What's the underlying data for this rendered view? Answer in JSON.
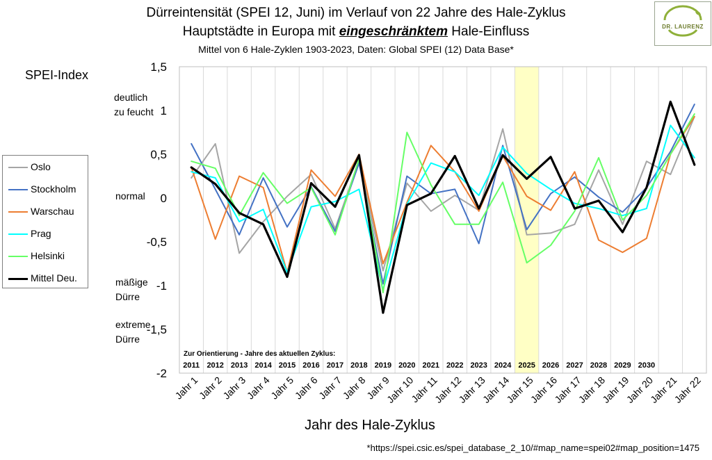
{
  "header": {
    "title_line1": "Dürreintensität (SPEI 12, Juni) im Verlauf von 22 Jahre des Hale-Zyklus",
    "title_line2_pre": "Hauptstädte in Europa mit ",
    "title_line2_em": "eingeschränktem",
    "title_line2_post": " Hale-Einfluss",
    "subtitle": "Mittel von 6 Hale-Zyklen 1903-2023, Daten: Global SPEI (12) Data Base*"
  },
  "logo": {
    "text": "DR. LAURENZ",
    "icon": "leaf-arc-logo-icon"
  },
  "y_title": "SPEI-Index",
  "categories_text": {
    "feucht_1": "deutlich",
    "feucht_2": "zu feucht",
    "normal": "normal",
    "maessig_1": "mäßige",
    "maessig_2": "Dürre",
    "extrem_1": "extreme",
    "extrem_2": "Dürre"
  },
  "x_title": "Jahr des Hale-Zyklus",
  "source_note": "*https://spei.csic.es/spei_database_2_10/#map_name=spei02#map_position=1475",
  "chart_data": {
    "type": "line",
    "x": [
      "Jahr 1",
      "Jahr 2",
      "Jahr 3",
      "Jahr 4",
      "Jahr 5",
      "Jahr 6",
      "Jahr 7",
      "Jahr 8",
      "Jahr 9",
      "Jahr 10",
      "Jahr 11",
      "Jahr 12",
      "Jahr 13",
      "Jahr 14",
      "Jahr 15",
      "Jahr 16",
      "Jahr 17",
      "Jahr 18",
      "Jahr 19",
      "Jahr 20",
      "Jahr 21",
      "Jahr 22"
    ],
    "ylim": [
      -2,
      1.5
    ],
    "y_ticks": [
      "1,5",
      "1",
      "0,5",
      "0",
      "-0,5",
      "-1",
      "-1,5",
      "-2"
    ],
    "y_tick_values": [
      1.5,
      1,
      0.5,
      0,
      -0.5,
      -1,
      -1.5,
      -2
    ],
    "grid": "vertical",
    "legend_position": "left",
    "highlight": {
      "category": "Jahr 15",
      "color": "#ffffc5"
    },
    "orientation_text": "Zur Orientierung - Jahre des aktuellen Zyklus:",
    "current_years": [
      "2011",
      "2012",
      "2013",
      "2014",
      "2015",
      "2016",
      "2017",
      "2018",
      "2019",
      "2020",
      "2021",
      "2022",
      "2023",
      "2024",
      "2025",
      "2026",
      "2027",
      "2028",
      "2029",
      "2030"
    ],
    "series": [
      {
        "name": "Oslo",
        "color": "#a5a5a5",
        "width": 2,
        "values": [
          0.23,
          0.62,
          -0.63,
          -0.27,
          0.02,
          0.27,
          -0.35,
          0.43,
          -0.83,
          0.17,
          -0.15,
          0.03,
          -0.14,
          0.79,
          -0.42,
          -0.4,
          -0.3,
          0.32,
          -0.3,
          0.42,
          0.27,
          0.93
        ]
      },
      {
        "name": "Stockholm",
        "color": "#4472c4",
        "width": 2,
        "values": [
          0.62,
          0.1,
          -0.42,
          0.23,
          -0.33,
          0.13,
          -0.38,
          0.4,
          -0.98,
          0.25,
          0.05,
          0.1,
          -0.52,
          0.6,
          -0.36,
          0.05,
          0.24,
          0.01,
          -0.16,
          0.12,
          0.53,
          1.07
        ]
      },
      {
        "name": "Warschau",
        "color": "#ed7d31",
        "width": 2,
        "values": [
          0.35,
          -0.47,
          0.25,
          0.12,
          -0.85,
          0.32,
          0.02,
          0.5,
          -0.75,
          -0.05,
          0.6,
          0.3,
          -0.15,
          0.48,
          0.02,
          -0.14,
          0.3,
          -0.48,
          -0.62,
          -0.46,
          0.5,
          0.93
        ]
      },
      {
        "name": "Prag",
        "color": "#00ffff",
        "width": 2,
        "values": [
          0.3,
          0.23,
          -0.27,
          -0.13,
          -0.85,
          -0.1,
          -0.04,
          0.1,
          -1.05,
          -0.07,
          0.4,
          0.3,
          0.03,
          0.58,
          0.28,
          0.1,
          -0.06,
          -0.12,
          -0.2,
          -0.12,
          0.83,
          0.46
        ]
      },
      {
        "name": "Helsinki",
        "color": "#66ff66",
        "width": 2,
        "values": [
          0.42,
          0.34,
          -0.2,
          0.29,
          -0.06,
          0.12,
          -0.42,
          0.45,
          -1.08,
          0.75,
          0.15,
          -0.3,
          -0.3,
          0.18,
          -0.74,
          -0.54,
          -0.15,
          0.46,
          -0.25,
          0.03,
          0.5,
          0.96
        ]
      },
      {
        "name": "Mittel Deu.",
        "color": "#000000",
        "width": 3.2,
        "values": [
          0.35,
          0.16,
          -0.17,
          -0.3,
          -0.9,
          0.17,
          -0.1,
          0.49,
          -1.31,
          -0.08,
          0.05,
          0.48,
          -0.12,
          0.49,
          0.22,
          0.47,
          -0.12,
          -0.03,
          -0.39,
          0.12,
          1.1,
          0.38
        ]
      }
    ]
  }
}
